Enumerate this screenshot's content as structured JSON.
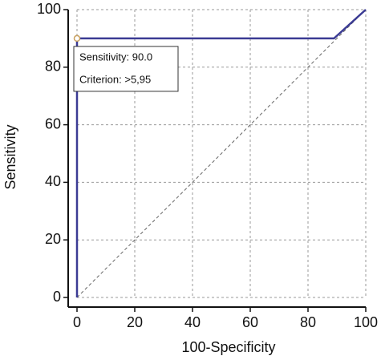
{
  "chart_data": {
    "type": "line",
    "xlabel": "100-Specificity",
    "ylabel": "Sensitivity",
    "x": [
      0,
      0,
      89,
      100
    ],
    "series": [
      {
        "color": "#3b3b94",
        "values": [
          0,
          90,
          90,
          100
        ]
      }
    ],
    "xlim": [
      0,
      100
    ],
    "ylim": [
      0,
      100
    ],
    "xticks": [
      0,
      20,
      40,
      60,
      80,
      100
    ],
    "yticks": [
      0,
      20,
      40,
      60,
      80,
      100
    ],
    "grid": true,
    "diagonal": true,
    "highlight": {
      "x": 0,
      "y": 90,
      "color": "#c8a060"
    },
    "tooltip": [
      "Sensitivity: 90.0",
      "Criterion: >5,95"
    ]
  }
}
